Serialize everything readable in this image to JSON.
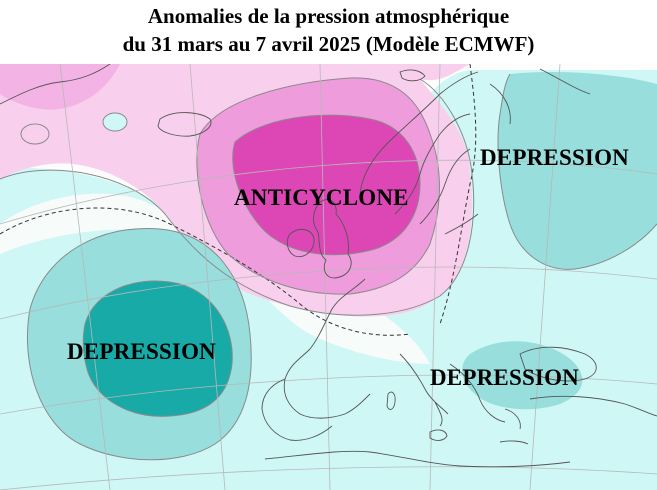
{
  "title": {
    "line1": "Anomalies de la pression atmosphérique",
    "line2": "du 31 mars au 7 avril 2025 (Modèle ECMWF)"
  },
  "labels": {
    "anticyclone": "ANTICYCLONE",
    "depression_northeast": "DEPRESSION",
    "depression_atlantic": "DEPRESSION",
    "depression_mediterranean": "DEPRESSION"
  },
  "colors": {
    "ocean_light_cyan": "#cff7f5",
    "teal_medium": "#97dedc",
    "teal_dark": "#18aaa7",
    "pink_light": "#f8d0ee",
    "pink_medium": "#ee9cdc",
    "magenta_strong": "#dd47b5",
    "coastline": "#555555",
    "graticule": "#b8b8b8"
  }
}
